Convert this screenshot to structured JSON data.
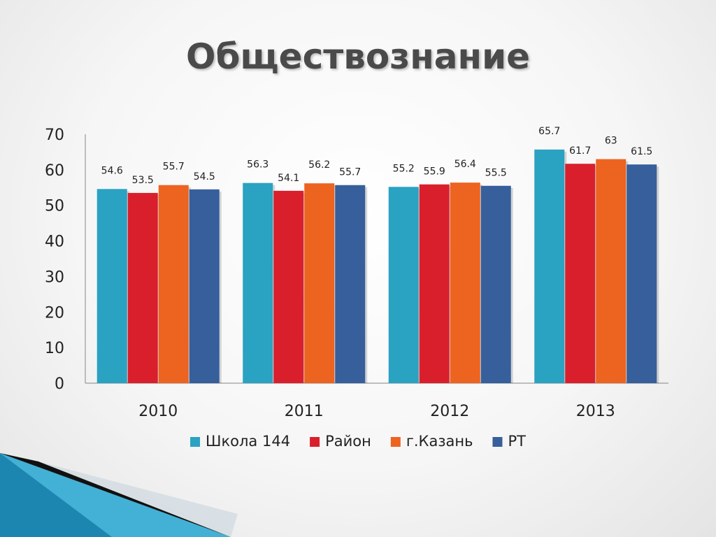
{
  "slide": {
    "title": "Обществознание"
  },
  "chart_data": {
    "type": "bar",
    "categories": [
      "2010",
      "2011",
      "2012",
      "2013"
    ],
    "series": [
      {
        "name": "Школа 144",
        "color": "#2aa2c2",
        "values": [
          54.6,
          56.3,
          55.2,
          65.7
        ]
      },
      {
        "name": "Район",
        "color": "#da1f2c",
        "values": [
          53.5,
          54.1,
          55.9,
          61.7
        ]
      },
      {
        "name": "г.Казань",
        "color": "#ed6320",
        "values": [
          55.7,
          56.2,
          56.4,
          63
        ]
      },
      {
        "name": "РТ",
        "color": "#365f9b",
        "values": [
          54.5,
          55.7,
          55.5,
          61.5
        ]
      }
    ],
    "ylim": [
      0,
      70
    ],
    "yticks": [
      0,
      10,
      20,
      30,
      40,
      50,
      60,
      70
    ],
    "legend_position": "bottom",
    "grid": false
  }
}
